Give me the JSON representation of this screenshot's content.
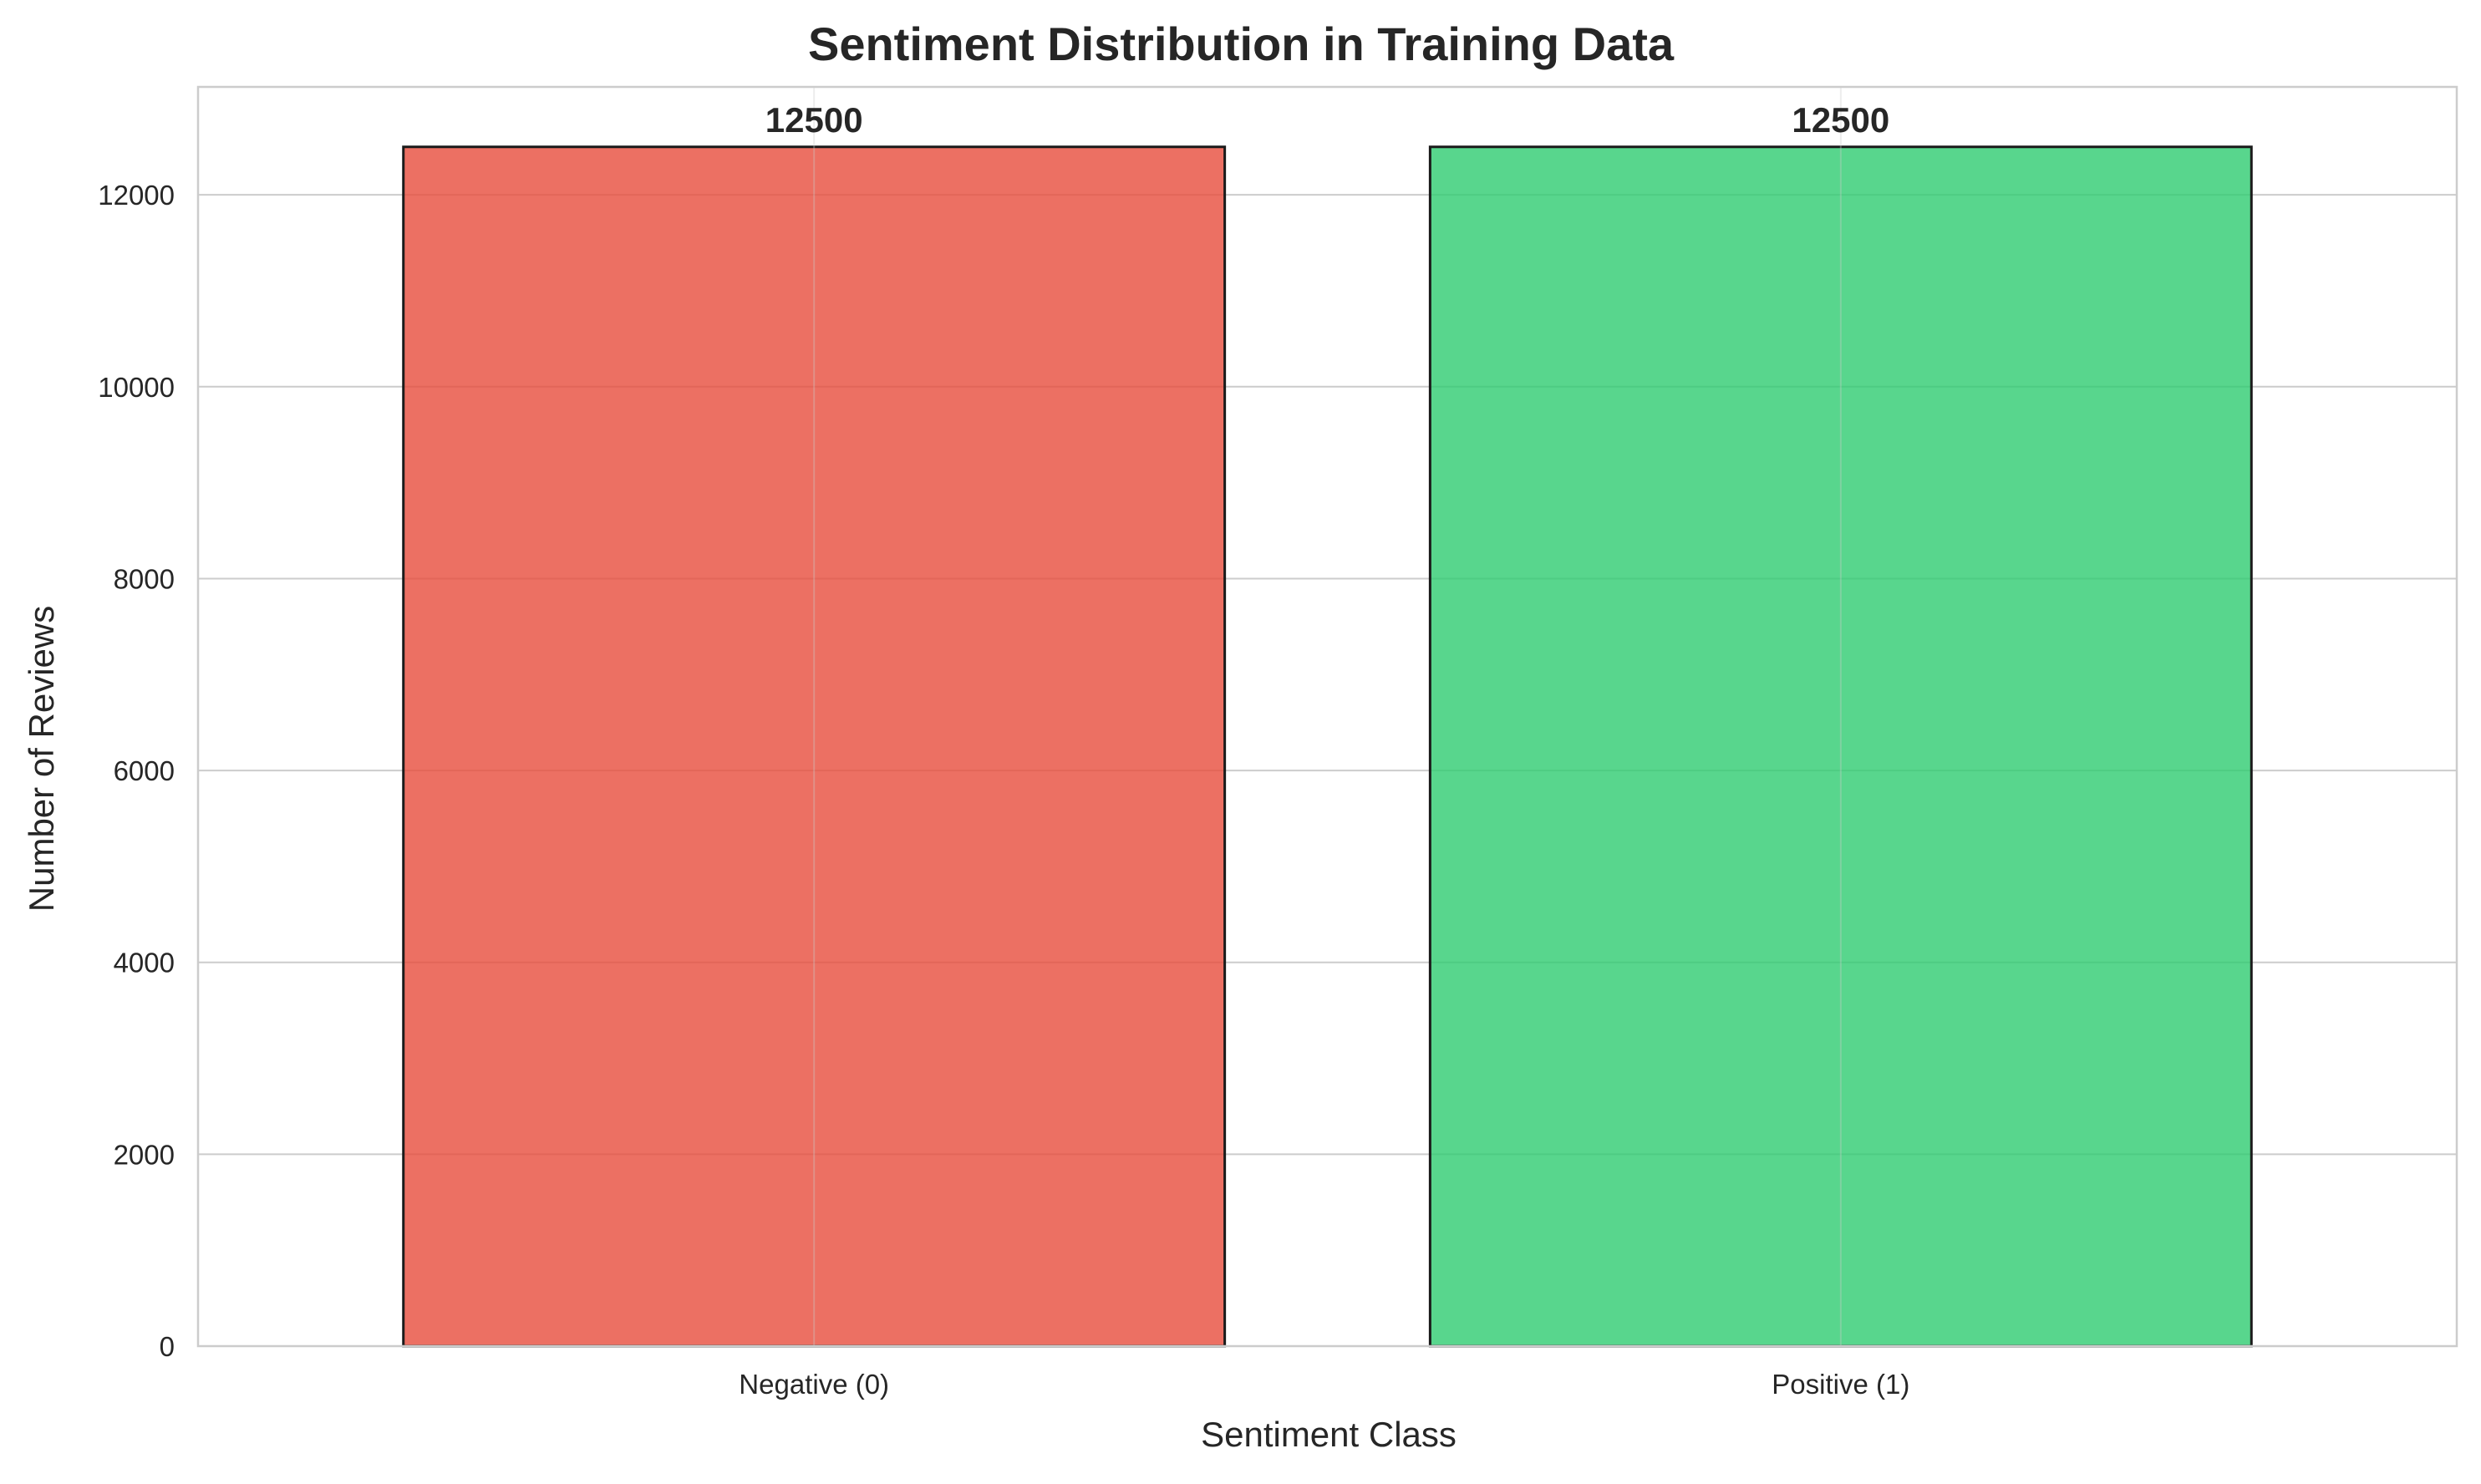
{
  "chart_data": {
    "type": "bar",
    "title": "Sentiment Distribution in Training Data",
    "xlabel": "Sentiment Class",
    "ylabel": "Number of Reviews",
    "categories": [
      "Negative (0)",
      "Positive (1)"
    ],
    "values": [
      12500,
      12500
    ],
    "data_labels": [
      "12500",
      "12500"
    ],
    "ylim": [
      0,
      13125
    ],
    "yticks": [
      0,
      2000,
      4000,
      6000,
      8000,
      10000,
      12000
    ],
    "ytick_labels": [
      "0",
      "2000",
      "4000",
      "6000",
      "8000",
      "10000",
      "12000"
    ],
    "grid": true,
    "colors": {
      "bars": [
        "#e74c3c",
        "#2ecc71"
      ],
      "bar_edge": "#1a1a1a",
      "grid": "#cccccc",
      "axes_edge": "#cccccc",
      "text": "#262626",
      "background": "#ffffff"
    }
  }
}
